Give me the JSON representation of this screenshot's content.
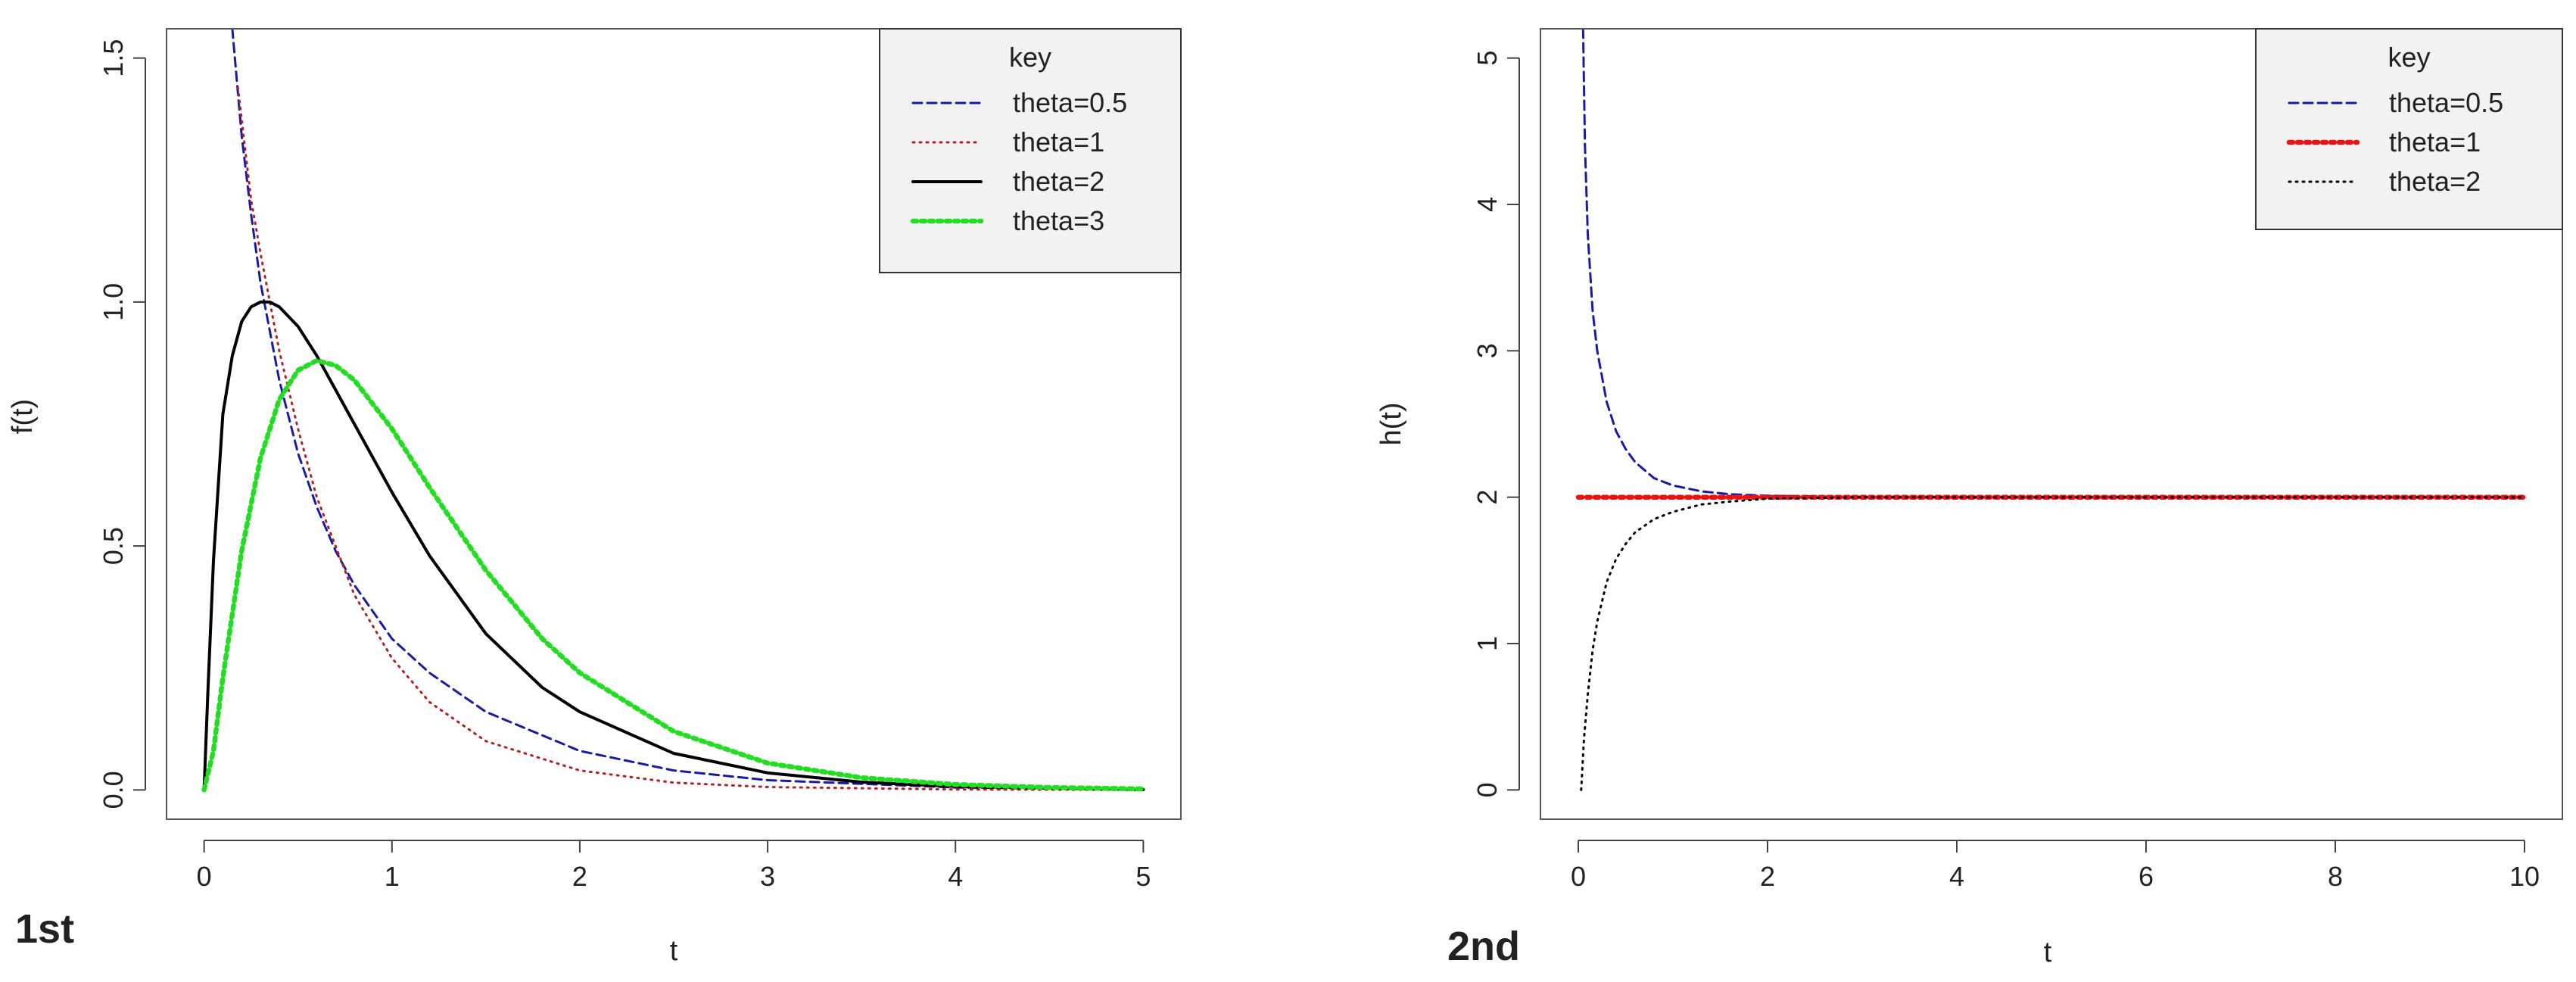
{
  "chart_data": [
    {
      "type": "line",
      "panel_label": "1st",
      "xlabel": "t",
      "ylabel": "f(t)",
      "xlim": [
        0,
        5
      ],
      "ylim": [
        0,
        1.5
      ],
      "x_ticks": [
        "0",
        "1",
        "2",
        "3",
        "4",
        "5"
      ],
      "y_ticks": [
        "0.0",
        "0.5",
        "1.0",
        "1.5"
      ],
      "grid": false,
      "legend": {
        "title": "key",
        "position": "top-right",
        "entries": [
          "theta=0.5",
          "theta=1",
          "theta=2",
          "theta=3"
        ]
      },
      "series": [
        {
          "name": "theta=0.5",
          "color": "#1a1aa6",
          "style": "dashed",
          "x": [
            0.15,
            0.2,
            0.25,
            0.3,
            0.4,
            0.5,
            0.6,
            0.7,
            0.8,
            1.0,
            1.2,
            1.5,
            2.0,
            2.5,
            3.0,
            4.0,
            5.0
          ],
          "y": [
            1.56,
            1.34,
            1.18,
            1.04,
            0.84,
            0.69,
            0.58,
            0.49,
            0.42,
            0.31,
            0.24,
            0.16,
            0.08,
            0.04,
            0.02,
            0.005,
            0.0
          ]
        },
        {
          "name": "theta=1",
          "color": "#b22222",
          "style": "dotted",
          "x": [
            0.18,
            0.25,
            0.3,
            0.4,
            0.5,
            0.6,
            0.8,
            1.0,
            1.2,
            1.5,
            2.0,
            2.5,
            3.0,
            4.0,
            5.0
          ],
          "y": [
            1.44,
            1.21,
            1.1,
            0.9,
            0.74,
            0.6,
            0.4,
            0.27,
            0.18,
            0.1,
            0.04,
            0.015,
            0.006,
            0.001,
            0.0
          ]
        },
        {
          "name": "theta=2",
          "color": "#000000",
          "style": "solid",
          "x": [
            0.0,
            0.02,
            0.05,
            0.1,
            0.15,
            0.2,
            0.25,
            0.3,
            0.35,
            0.4,
            0.5,
            0.6,
            0.7,
            0.8,
            1.0,
            1.2,
            1.5,
            1.8,
            2.0,
            2.5,
            3.0,
            3.5,
            4.0,
            5.0
          ],
          "y": [
            0.0,
            0.2,
            0.47,
            0.77,
            0.89,
            0.96,
            0.99,
            1.0,
            1.0,
            0.99,
            0.95,
            0.89,
            0.82,
            0.75,
            0.61,
            0.48,
            0.32,
            0.21,
            0.16,
            0.075,
            0.035,
            0.016,
            0.007,
            0.001
          ]
        },
        {
          "name": "theta=3",
          "color": "#22dd22",
          "style": "dotted-thick",
          "x": [
            0.0,
            0.05,
            0.1,
            0.2,
            0.3,
            0.4,
            0.5,
            0.6,
            0.7,
            0.8,
            1.0,
            1.2,
            1.5,
            1.8,
            2.0,
            2.5,
            3.0,
            3.5,
            4.0,
            4.5,
            5.0
          ],
          "y": [
            0.0,
            0.08,
            0.23,
            0.49,
            0.68,
            0.8,
            0.86,
            0.88,
            0.87,
            0.84,
            0.74,
            0.62,
            0.45,
            0.31,
            0.24,
            0.12,
            0.055,
            0.025,
            0.011,
            0.005,
            0.002
          ]
        }
      ]
    },
    {
      "type": "line",
      "panel_label": "2nd",
      "xlabel": "t",
      "ylabel": "h(t)",
      "xlim": [
        0,
        10
      ],
      "ylim": [
        0,
        5
      ],
      "x_ticks": [
        "0",
        "2",
        "4",
        "6",
        "8",
        "10"
      ],
      "y_ticks": [
        "0",
        "1",
        "2",
        "3",
        "4",
        "5"
      ],
      "grid": false,
      "legend": {
        "title": "key",
        "position": "top-right",
        "entries": [
          "theta=0.5",
          "theta=1",
          "theta=2"
        ]
      },
      "series": [
        {
          "name": "theta=0.5",
          "color": "#1a1aa6",
          "style": "dashed",
          "x": [
            0.05,
            0.07,
            0.1,
            0.15,
            0.2,
            0.3,
            0.4,
            0.5,
            0.6,
            0.8,
            1.0,
            1.3,
            1.6,
            2.0,
            3.0,
            5.0,
            10.0
          ],
          "y": [
            5.2,
            4.4,
            3.8,
            3.28,
            3.0,
            2.65,
            2.45,
            2.33,
            2.24,
            2.13,
            2.08,
            2.04,
            2.02,
            2.01,
            2.0,
            2.0,
            2.0
          ]
        },
        {
          "name": "theta=1",
          "color": "#ee1111",
          "style": "dotted-thick",
          "x": [
            0.0,
            10.0
          ],
          "y": [
            2.0,
            2.0
          ]
        },
        {
          "name": "theta=2",
          "color": "#000000",
          "style": "dotted",
          "x": [
            0.03,
            0.06,
            0.1,
            0.15,
            0.2,
            0.3,
            0.4,
            0.5,
            0.6,
            0.8,
            1.0,
            1.3,
            1.6,
            2.0,
            3.0,
            5.0,
            10.0
          ],
          "y": [
            0.0,
            0.35,
            0.65,
            0.95,
            1.15,
            1.42,
            1.58,
            1.68,
            1.76,
            1.85,
            1.9,
            1.95,
            1.97,
            1.99,
            2.0,
            2.0,
            2.0
          ]
        }
      ]
    }
  ]
}
